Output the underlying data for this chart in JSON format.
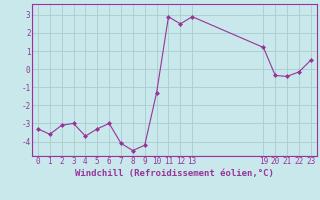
{
  "x": [
    0,
    1,
    2,
    3,
    4,
    5,
    6,
    7,
    8,
    9,
    10,
    11,
    12,
    13,
    19,
    20,
    21,
    22,
    23
  ],
  "y": [
    -3.3,
    -3.6,
    -3.1,
    -3.0,
    -3.7,
    -3.3,
    -3.0,
    -4.1,
    -4.5,
    -4.2,
    -1.3,
    2.9,
    2.5,
    2.9,
    1.2,
    -0.35,
    -0.4,
    -0.15,
    0.5
  ],
  "line_color": "#993399",
  "marker_color": "#993399",
  "bg_color": "#c8e8ec",
  "grid_color": "#aacccc",
  "xlabel": "Windchill (Refroidissement éolien,°C)",
  "xticks": [
    0,
    1,
    2,
    3,
    4,
    5,
    6,
    7,
    8,
    9,
    10,
    11,
    12,
    13,
    19,
    20,
    21,
    22,
    23
  ],
  "yticks": [
    -4,
    -3,
    -2,
    -1,
    0,
    1,
    2,
    3
  ],
  "ylim": [
    -4.8,
    3.6
  ],
  "xlim": [
    -0.5,
    23.5
  ],
  "tick_fontsize": 5.5,
  "xlabel_fontsize": 6.5
}
